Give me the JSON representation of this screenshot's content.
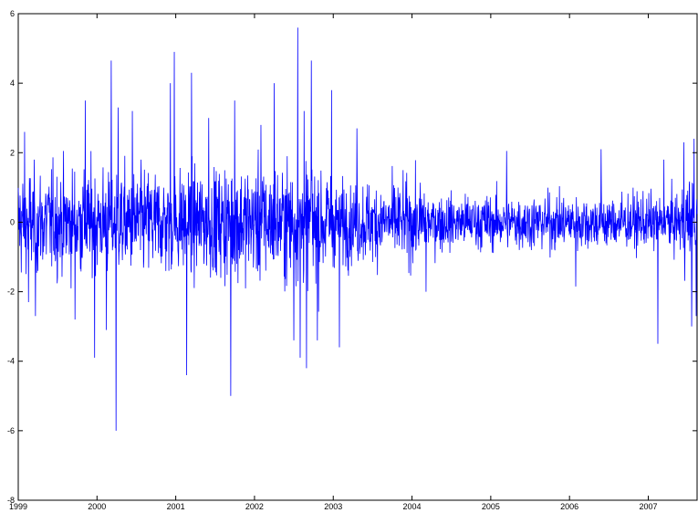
{
  "chart_data": {
    "type": "line",
    "title": "",
    "xlabel": "",
    "ylabel": "",
    "xlim": [
      1999,
      2007.62
    ],
    "ylim": [
      -8,
      6
    ],
    "x_ticks": [
      "1999",
      "2000",
      "2001",
      "2002",
      "2003",
      "2004",
      "2005",
      "2006",
      "2007"
    ],
    "y_ticks": [
      "-8",
      "-6",
      "-4",
      "-2",
      "0",
      "2",
      "4",
      "6"
    ],
    "grid": false,
    "series": [
      {
        "color": "#0000ff",
        "regimes": [
          {
            "from": 1999.0,
            "to": 2001.6,
            "sd": 1.05
          },
          {
            "from": 2001.6,
            "to": 2003.0,
            "sd": 1.15
          },
          {
            "from": 2003.0,
            "to": 2004.2,
            "sd": 0.8
          },
          {
            "from": 2004.2,
            "to": 2007.4,
            "sd": 0.55
          },
          {
            "from": 2007.4,
            "to": 2007.62,
            "sd": 0.9
          }
        ],
        "extremes": [
          {
            "x": 1999.08,
            "y": 2.6
          },
          {
            "x": 1999.13,
            "y": -2.3
          },
          {
            "x": 1999.22,
            "y": -2.7
          },
          {
            "x": 1999.72,
            "y": -2.8
          },
          {
            "x": 1999.85,
            "y": 3.5
          },
          {
            "x": 1999.97,
            "y": -3.9
          },
          {
            "x": 2000.12,
            "y": -3.1
          },
          {
            "x": 2000.18,
            "y": 4.65
          },
          {
            "x": 2000.24,
            "y": -6.0
          },
          {
            "x": 2000.27,
            "y": 3.3
          },
          {
            "x": 2000.45,
            "y": 3.2
          },
          {
            "x": 2000.93,
            "y": 4.0
          },
          {
            "x": 2000.98,
            "y": 4.9
          },
          {
            "x": 2001.14,
            "y": -4.4
          },
          {
            "x": 2001.2,
            "y": 4.3
          },
          {
            "x": 2001.42,
            "y": 3.0
          },
          {
            "x": 2001.7,
            "y": -5.0
          },
          {
            "x": 2001.75,
            "y": 3.5
          },
          {
            "x": 2002.08,
            "y": 2.8
          },
          {
            "x": 2002.25,
            "y": 4.0
          },
          {
            "x": 2002.5,
            "y": -3.4
          },
          {
            "x": 2002.55,
            "y": 5.6
          },
          {
            "x": 2002.58,
            "y": -3.9
          },
          {
            "x": 2002.63,
            "y": 3.2
          },
          {
            "x": 2002.66,
            "y": -4.2
          },
          {
            "x": 2002.72,
            "y": 4.65
          },
          {
            "x": 2002.8,
            "y": -3.4
          },
          {
            "x": 2002.98,
            "y": 3.8
          },
          {
            "x": 2003.08,
            "y": -3.6
          },
          {
            "x": 2003.3,
            "y": 2.7
          },
          {
            "x": 2004.18,
            "y": -2.0
          },
          {
            "x": 2005.2,
            "y": 2.05
          },
          {
            "x": 2006.08,
            "y": -1.85
          },
          {
            "x": 2006.4,
            "y": 2.1
          },
          {
            "x": 2007.12,
            "y": -3.5
          },
          {
            "x": 2007.2,
            "y": 1.8
          },
          {
            "x": 2007.45,
            "y": 2.3
          },
          {
            "x": 2007.55,
            "y": -3.0
          },
          {
            "x": 2007.58,
            "y": 2.4
          },
          {
            "x": 2007.61,
            "y": -2.7
          }
        ]
      }
    ]
  }
}
